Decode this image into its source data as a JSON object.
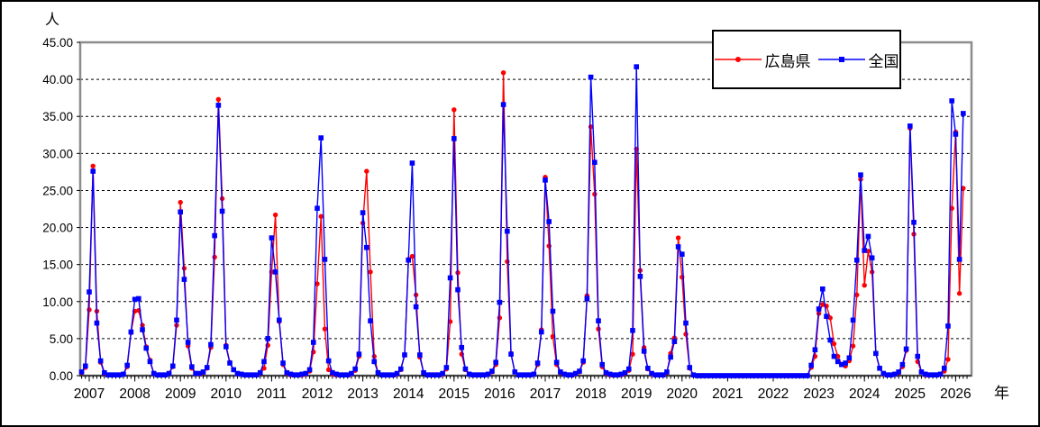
{
  "window": {
    "background": "#FFFFFF",
    "frame_border": "#000000",
    "plot_border": "#8C8C8C"
  },
  "axis_labels": {
    "y_unit": "人",
    "x_unit": "年"
  },
  "legend": {
    "items": [
      {
        "id": "hiroshima",
        "label": "広島県",
        "color": "#FF0000",
        "marker": "circle"
      },
      {
        "id": "zenkoku",
        "label": "全国",
        "color": "#0000FF",
        "marker": "square"
      }
    ]
  },
  "chart_data": {
    "type": "line",
    "title": "",
    "ylabel": "人",
    "xlabel": "年",
    "ylim": [
      0,
      45
    ],
    "y_tick_step": 5,
    "y_tick_labels": [
      "45.00",
      "40.00",
      "35.00",
      "30.00",
      "25.00",
      "20.00",
      "15.00",
      "10.00",
      "5.00",
      "0.00"
    ],
    "x_year_labels": [
      "2007",
      "2008",
      "2009",
      "2010",
      "2011",
      "2012",
      "2013",
      "2014",
      "2015",
      "2016",
      "2017",
      "2018",
      "2019",
      "2020",
      "2021",
      "2022",
      "2023",
      "2024",
      "2025",
      "2026"
    ],
    "x_resolution": "monthly",
    "x_start_month": "2006-11",
    "x_end_month": "2026-03",
    "grid": "horizontal dashed lines every 5 units",
    "legend_position": "top-right inside, overlapping plot top border",
    "notes": "Seasonal influenza-like monthly reports per sentinel; flat near zero Apr 2020 - Oct 2022",
    "series": [
      {
        "name": "広島県",
        "color": "#FF0000",
        "marker": "circle",
        "values": [
          0.4,
          1.1,
          8.9,
          28.3,
          8.7,
          1.8,
          0.3,
          0.1,
          0.1,
          0.1,
          0.1,
          0.2,
          1.2,
          5.8,
          8.7,
          8.8,
          6.8,
          3.9,
          2.1,
          0.3,
          0.1,
          0.1,
          0.1,
          0.3,
          1.2,
          6.8,
          23.4,
          14.5,
          4.0,
          1.0,
          0.3,
          0.2,
          0.4,
          1.0,
          3.8,
          16.0,
          37.3,
          23.9,
          4.1,
          1.8,
          0.8,
          0.3,
          0.2,
          0.1,
          0.1,
          0.1,
          0.1,
          0.3,
          1.0,
          4.1,
          14.0,
          21.7,
          7.3,
          1.5,
          0.3,
          0.1,
          0.1,
          0.1,
          0.1,
          0.2,
          0.6,
          3.2,
          12.4,
          21.5,
          6.3,
          0.8,
          0.2,
          0.1,
          0.1,
          0.1,
          0.1,
          0.2,
          0.7,
          2.6,
          20.6,
          27.6,
          14.0,
          2.6,
          0.4,
          0.1,
          0.1,
          0.1,
          0.1,
          0.2,
          0.8,
          2.8,
          15.7,
          16.1,
          10.9,
          2.5,
          0.4,
          0.1,
          0.1,
          0.1,
          0.1,
          0.2,
          0.9,
          7.3,
          35.9,
          13.9,
          2.9,
          0.8,
          0.2,
          0.1,
          0.1,
          0.1,
          0.1,
          0.2,
          0.5,
          1.5,
          7.8,
          40.9,
          15.4,
          3.0,
          0.5,
          0.1,
          0.1,
          0.1,
          0.1,
          0.2,
          1.5,
          6.2,
          26.8,
          17.5,
          5.3,
          1.5,
          0.4,
          0.2,
          0.1,
          0.1,
          0.2,
          0.5,
          1.8,
          10.8,
          33.6,
          24.5,
          6.3,
          1.2,
          0.3,
          0.1,
          0.1,
          0.1,
          0.1,
          0.3,
          0.7,
          2.9,
          30.6,
          14.2,
          3.8,
          0.9,
          0.2,
          0.1,
          0.1,
          0.1,
          0.4,
          3.0,
          5.1,
          18.6,
          13.3,
          5.6,
          1.0,
          0.1,
          0,
          0,
          0,
          0,
          0,
          0,
          0,
          0,
          0,
          0,
          0,
          0,
          0,
          0,
          0,
          0,
          0,
          0,
          0,
          0,
          0,
          0,
          0,
          0,
          0,
          0,
          0,
          0,
          0,
          0,
          1.1,
          2.6,
          8.4,
          9.6,
          9.4,
          7.8,
          4.3,
          2.6,
          1.5,
          1.3,
          2.0,
          4.0,
          10.9,
          26.5,
          12.2,
          16.8,
          14.0,
          3.0,
          1.0,
          0.2,
          0.1,
          0.1,
          0.2,
          0.4,
          1.2,
          3.4,
          33.4,
          19.1,
          1.9,
          0.5,
          0.1,
          0.1,
          0.1,
          0.1,
          0.2,
          0.6,
          2.2,
          22.6,
          32.9,
          11.1,
          25.3
        ]
      },
      {
        "name": "全国",
        "color": "#0000FF",
        "marker": "square",
        "values": [
          0.5,
          1.3,
          11.3,
          27.6,
          7.1,
          2.0,
          0.4,
          0.1,
          0.1,
          0.1,
          0.1,
          0.2,
          1.4,
          5.9,
          10.3,
          10.4,
          6.2,
          3.7,
          1.9,
          0.3,
          0.1,
          0.1,
          0.1,
          0.3,
          1.3,
          7.5,
          22.1,
          13.0,
          4.5,
          1.2,
          0.3,
          0.3,
          0.5,
          1.1,
          4.2,
          18.9,
          36.5,
          22.2,
          3.9,
          1.7,
          0.8,
          0.3,
          0.2,
          0.1,
          0.1,
          0.1,
          0.1,
          0.4,
          1.9,
          5.0,
          18.6,
          14.0,
          7.5,
          1.7,
          0.4,
          0.2,
          0.1,
          0.1,
          0.2,
          0.3,
          0.8,
          4.5,
          22.6,
          32.1,
          15.7,
          2.0,
          0.4,
          0.2,
          0.1,
          0.1,
          0.1,
          0.3,
          0.9,
          2.9,
          22.0,
          17.3,
          7.4,
          1.9,
          0.4,
          0.1,
          0.1,
          0.1,
          0.1,
          0.3,
          0.9,
          2.8,
          15.6,
          28.7,
          9.3,
          2.8,
          0.4,
          0.1,
          0.1,
          0.1,
          0.1,
          0.3,
          1.1,
          13.2,
          32.0,
          11.6,
          3.8,
          0.9,
          0.2,
          0.1,
          0.1,
          0.1,
          0.1,
          0.2,
          0.6,
          1.8,
          9.9,
          36.6,
          19.5,
          2.9,
          0.5,
          0.1,
          0.1,
          0.1,
          0.1,
          0.2,
          1.7,
          5.9,
          26.4,
          20.8,
          8.7,
          1.8,
          0.5,
          0.2,
          0.1,
          0.1,
          0.3,
          0.6,
          2.0,
          10.4,
          40.3,
          28.8,
          7.4,
          1.5,
          0.4,
          0.2,
          0.1,
          0.1,
          0.2,
          0.4,
          0.9,
          6.1,
          41.7,
          13.4,
          3.3,
          1.0,
          0.3,
          0.1,
          0.1,
          0.1,
          0.5,
          2.5,
          4.6,
          17.4,
          16.4,
          7.1,
          1.1,
          0.1,
          0,
          0,
          0,
          0,
          0,
          0,
          0,
          0,
          0,
          0,
          0,
          0,
          0,
          0,
          0,
          0,
          0,
          0,
          0,
          0,
          0,
          0,
          0,
          0,
          0,
          0,
          0,
          0,
          0,
          0,
          1.4,
          3.5,
          9.0,
          11.7,
          8.0,
          4.8,
          2.6,
          1.9,
          1.5,
          1.7,
          2.4,
          7.5,
          15.6,
          27.1,
          16.9,
          18.8,
          15.9,
          3.0,
          1.0,
          0.3,
          0.1,
          0.1,
          0.2,
          0.5,
          1.5,
          3.6,
          33.7,
          20.7,
          2.6,
          0.5,
          0.2,
          0.1,
          0.1,
          0.1,
          0.2,
          1.0,
          6.7,
          37.1,
          32.6,
          15.7,
          35.4
        ]
      }
    ]
  }
}
